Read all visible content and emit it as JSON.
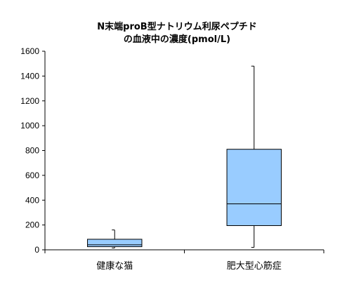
{
  "chart_data": {
    "type": "box",
    "title_lines": [
      "N末端proB型ナトリウム利尿ペプチド",
      "の血液中の濃度(pmol/L)"
    ],
    "xlabel": "",
    "ylabel": "",
    "ylim": [
      0,
      1600
    ],
    "yticks": [
      0,
      200,
      400,
      600,
      800,
      1000,
      1200,
      1400,
      1600
    ],
    "grid": false,
    "legend": "none",
    "categories": [
      "健康な猫",
      "肥大型心筋症"
    ],
    "boxes": [
      {
        "category": "健康な猫",
        "min": 15,
        "q1": 25,
        "median": 40,
        "q3": 85,
        "max": 160
      },
      {
        "category": "肥大型心筋症",
        "min": 20,
        "q1": 195,
        "median": 370,
        "q3": 810,
        "max": 1480
      }
    ],
    "box_fill": "#99ccff",
    "box_stroke": "#000000"
  }
}
